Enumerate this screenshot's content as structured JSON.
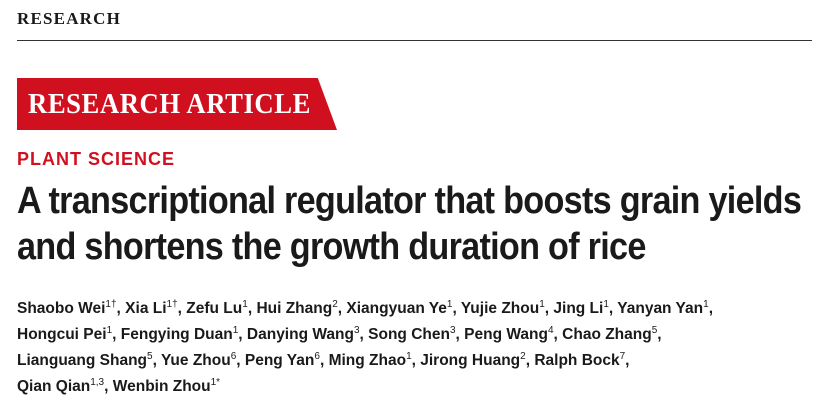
{
  "section_label": "RESEARCH",
  "article_type": "RESEARCH ARTICLE",
  "category": "PLANT SCIENCE",
  "title_lines": [
    "A transcriptional regulator that boosts grain yields",
    "and shortens the growth duration of rice"
  ],
  "authors": [
    {
      "name": "Shaobo Wei",
      "sup": "1†"
    },
    {
      "name": "Xia Li",
      "sup": "1†"
    },
    {
      "name": "Zefu Lu",
      "sup": "1"
    },
    {
      "name": "Hui Zhang",
      "sup": "2"
    },
    {
      "name": "Xiangyuan Ye",
      "sup": "1"
    },
    {
      "name": "Yujie Zhou",
      "sup": "1"
    },
    {
      "name": "Jing Li",
      "sup": "1"
    },
    {
      "name": "Yanyan Yan",
      "sup": "1"
    },
    {
      "name": "Hongcui Pei",
      "sup": "1"
    },
    {
      "name": "Fengying Duan",
      "sup": "1"
    },
    {
      "name": "Danying Wang",
      "sup": "3"
    },
    {
      "name": "Song Chen",
      "sup": "3"
    },
    {
      "name": "Peng Wang",
      "sup": "4"
    },
    {
      "name": "Chao Zhang",
      "sup": "5"
    },
    {
      "name": "Lianguang Shang",
      "sup": "5"
    },
    {
      "name": "Yue Zhou",
      "sup": "6"
    },
    {
      "name": "Peng Yan",
      "sup": "6"
    },
    {
      "name": "Ming Zhao",
      "sup": "1"
    },
    {
      "name": "Jirong Huang",
      "sup": "2"
    },
    {
      "name": "Ralph Bock",
      "sup": "7"
    },
    {
      "name": "Qian Qian",
      "sup": "1,3"
    },
    {
      "name": "Wenbin Zhou",
      "sup": "1*"
    }
  ],
  "colors": {
    "accent_red": "#d0101e",
    "text": "#1a1a1a"
  }
}
